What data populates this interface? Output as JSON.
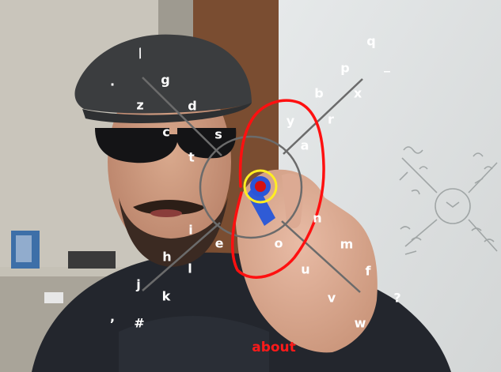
{
  "keyboard": {
    "groups": [
      {
        "id": "upper-left",
        "letters": [
          "/",
          ".",
          "g",
          "z",
          "d",
          "c",
          "s",
          "t"
        ]
      },
      {
        "id": "upper-right",
        "letters": [
          "q",
          "_",
          "p",
          "b",
          "x",
          "y",
          "r",
          "a"
        ]
      },
      {
        "id": "lower-left",
        "letters": [
          "i",
          "e",
          "h",
          "l",
          "j",
          "k",
          ",",
          "#"
        ]
      },
      {
        "id": "lower-right",
        "letters": [
          "n",
          "o",
          "m",
          "u",
          "f",
          "v",
          "?",
          "w"
        ]
      }
    ]
  },
  "prediction": {
    "word": "about"
  },
  "colors": {
    "label": "#ffffff",
    "axes": "#6b6b6b",
    "stroke_trace": "#ff1010",
    "cursor_ring": "#ffee22",
    "cursor_dot": "#d51010",
    "word": "#ff1a1a"
  }
}
